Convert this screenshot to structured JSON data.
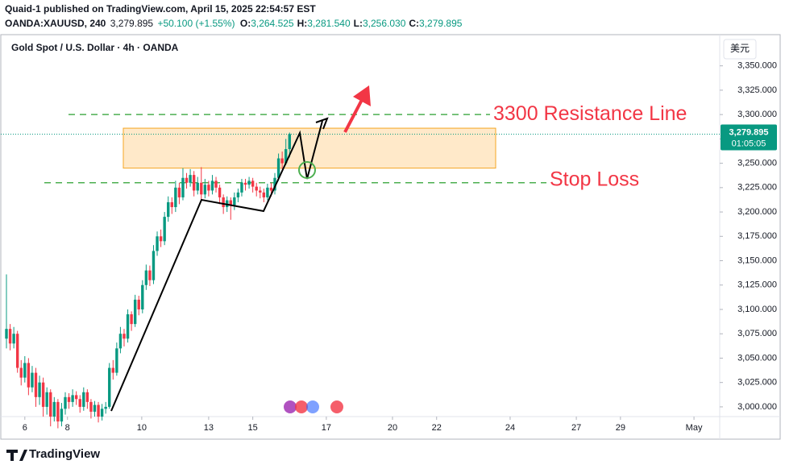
{
  "header": {
    "publisher": "Quaid-1 published on TradingView.com, April 15, 2025 22:54:57 EST",
    "symbol": "OANDA:XAUUSD, 240",
    "last": "3,279.895",
    "change": "+50.100 (+1.55%)",
    "ohlc": [
      {
        "key": "O:",
        "value": "3,264.525"
      },
      {
        "key": "H:",
        "value": "3,281.540"
      },
      {
        "key": "L:",
        "value": "3,256.030"
      },
      {
        "key": "C:",
        "value": "3,279.895"
      }
    ]
  },
  "currency_button": "美元",
  "brand": "TradingView",
  "chart_data": {
    "type": "candlestick",
    "title": "Gold Spot / U.S. Dollar · 4h · OANDA",
    "up_color": "#089981",
    "down_color": "#f23645",
    "x": [
      0,
      1,
      2,
      3,
      4,
      5,
      6,
      7,
      8,
      9,
      10,
      11,
      12,
      13,
      14,
      15,
      16,
      17,
      18,
      19,
      20,
      21,
      22,
      23,
      24,
      25,
      26,
      27,
      28,
      29,
      30,
      31,
      32,
      33,
      34,
      35,
      36,
      37,
      38,
      39,
      40,
      41,
      42,
      43,
      44,
      45,
      46,
      47,
      48,
      49,
      50,
      51,
      52,
      53,
      54,
      55,
      56,
      57,
      58,
      59,
      60,
      61,
      62,
      63,
      64,
      65,
      66,
      67,
      68,
      69,
      70,
      71,
      72,
      73,
      74,
      75,
      76,
      77
    ],
    "open": [
      3070,
      3080,
      3065,
      3075,
      3040,
      3030,
      3045,
      3020,
      3035,
      3010,
      3025,
      3000,
      3015,
      2990,
      3005,
      2985,
      2998,
      3010,
      3005,
      3012,
      3008,
      3000,
      3015,
      3005,
      2995,
      3002,
      2990,
      2998,
      3000,
      3040,
      3035,
      3060,
      3075,
      3070,
      3095,
      3085,
      3110,
      3100,
      3125,
      3140,
      3130,
      3160,
      3175,
      3170,
      3195,
      3210,
      3205,
      3225,
      3215,
      3235,
      3230,
      3238,
      3222,
      3230,
      3218,
      3228,
      3222,
      3232,
      3225,
      3215,
      3205,
      3212,
      3207,
      3215,
      3220,
      3230,
      3228,
      3232,
      3226,
      3222,
      3220,
      3215,
      3225,
      3222,
      3235,
      3255,
      3250,
      3264.525
    ],
    "high": [
      3136,
      3085,
      3082,
      3078,
      3048,
      3052,
      3050,
      3042,
      3040,
      3032,
      3030,
      3020,
      3018,
      3010,
      3008,
      3004,
      3015,
      3014,
      3018,
      3016,
      3012,
      3020,
      3018,
      3008,
      3006,
      3005,
      3003,
      3005,
      3045,
      3048,
      3066,
      3082,
      3080,
      3100,
      3098,
      3115,
      3114,
      3130,
      3146,
      3145,
      3166,
      3180,
      3182,
      3200,
      3216,
      3215,
      3232,
      3230,
      3245,
      3240,
      3244,
      3242,
      3236,
      3246,
      3234,
      3232,
      3238,
      3236,
      3228,
      3218,
      3216,
      3215,
      3220,
      3224,
      3234,
      3234,
      3236,
      3235,
      3230,
      3226,
      3224,
      3229,
      3230,
      3240,
      3260,
      3262,
      3275,
      3281.54
    ],
    "low": [
      3060,
      3058,
      3060,
      3035,
      3022,
      3025,
      3012,
      3015,
      3000,
      3002,
      2990,
      2992,
      2980,
      2985,
      2978,
      2980,
      2992,
      2998,
      3000,
      3002,
      2994,
      2996,
      2998,
      2988,
      2990,
      2984,
      2986,
      2993,
      2998,
      3028,
      3032,
      3055,
      3062,
      3066,
      3078,
      3082,
      3094,
      3096,
      3120,
      3124,
      3126,
      3155,
      3164,
      3166,
      3190,
      3198,
      3200,
      3208,
      3212,
      3224,
      3226,
      3216,
      3218,
      3212,
      3214,
      3216,
      3218,
      3220,
      3208,
      3198,
      3200,
      3192,
      3202,
      3210,
      3216,
      3222,
      3224,
      3220,
      3216,
      3214,
      3210,
      3212,
      3216,
      3218,
      3232,
      3244,
      3248,
      3256.03
    ],
    "close": [
      3080,
      3065,
      3075,
      3040,
      3030,
      3045,
      3020,
      3035,
      3010,
      3025,
      3000,
      3015,
      2990,
      3005,
      2985,
      2998,
      3010,
      3005,
      3012,
      3008,
      3000,
      3015,
      3005,
      2995,
      3002,
      2990,
      2998,
      3000,
      3040,
      3035,
      3060,
      3075,
      3070,
      3095,
      3085,
      3110,
      3100,
      3125,
      3140,
      3130,
      3160,
      3175,
      3170,
      3195,
      3210,
      3205,
      3225,
      3215,
      3235,
      3230,
      3238,
      3222,
      3230,
      3218,
      3228,
      3222,
      3232,
      3225,
      3215,
      3205,
      3212,
      3207,
      3215,
      3220,
      3230,
      3228,
      3232,
      3226,
      3222,
      3220,
      3215,
      3225,
      3222,
      3235,
      3255,
      3250,
      3264.525,
      3279.895
    ],
    "xlim": [
      0,
      194
    ],
    "xticks": [
      {
        "value": 5,
        "label": "6"
      },
      {
        "value": 16.6,
        "label": "8"
      },
      {
        "value": 36.8,
        "label": "10"
      },
      {
        "value": 55,
        "label": "13"
      },
      {
        "value": 67,
        "label": "15"
      },
      {
        "value": 87,
        "label": "17"
      },
      {
        "value": 105,
        "label": "20"
      },
      {
        "value": 117,
        "label": "22"
      },
      {
        "value": 137,
        "label": "24"
      },
      {
        "value": 155,
        "label": "27"
      },
      {
        "value": 167,
        "label": "29"
      },
      {
        "value": 187,
        "label": "May"
      }
    ],
    "ylim": [
      2990,
      3382
    ],
    "yticks": [
      {
        "value": 3000,
        "label": "3,000.000"
      },
      {
        "value": 3025,
        "label": "3,025.000"
      },
      {
        "value": 3050,
        "label": "3,050.000"
      },
      {
        "value": 3075,
        "label": "3,075.000"
      },
      {
        "value": 3100,
        "label": "3,100.000"
      },
      {
        "value": 3125,
        "label": "3,125.000"
      },
      {
        "value": 3150,
        "label": "3,150.000"
      },
      {
        "value": 3175,
        "label": "3,175.000"
      },
      {
        "value": 3200,
        "label": "3,200.000"
      },
      {
        "value": 3225,
        "label": "3,225.000"
      },
      {
        "value": 3250,
        "label": "3,250.000"
      },
      {
        "value": 3275,
        "label": "3,275.000"
      },
      {
        "value": 3300,
        "label": "3,300.000"
      },
      {
        "value": 3325,
        "label": "3,325.000"
      },
      {
        "value": 3350,
        "label": "3,350.000"
      }
    ],
    "last_price": {
      "value": 3279.895,
      "label": "3,279.895",
      "countdown": "01:05:05"
    },
    "zone": [
      3245,
      3286
    ],
    "levels": [
      {
        "value": 3300,
        "label": "3300 Resistance Line"
      },
      {
        "value": 3230,
        "label": "Stop Loss"
      }
    ]
  }
}
